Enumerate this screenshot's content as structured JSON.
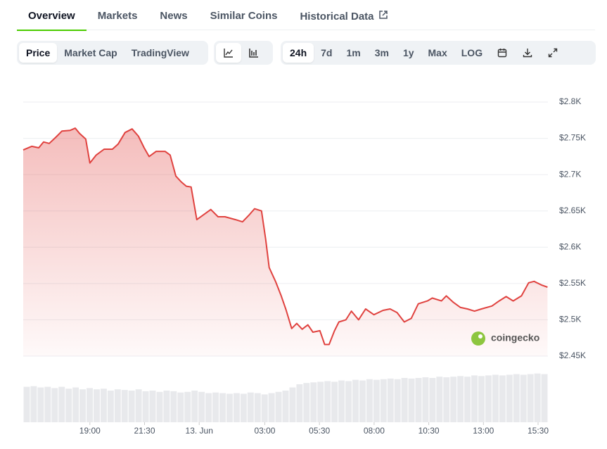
{
  "tabs": [
    "Overview",
    "Markets",
    "News",
    "Similar Coins",
    "Historical Data"
  ],
  "active_tab": 0,
  "chart_tabs": [
    "Price",
    "Market Cap",
    "TradingView"
  ],
  "active_chart_tab": 0,
  "ranges": [
    "24h",
    "7d",
    "1m",
    "3m",
    "1y",
    "Max",
    "LOG"
  ],
  "active_range": 0,
  "watermark": "coingecko",
  "chart_data": {
    "type": "line",
    "x": [
      15.95,
      16.34,
      16.66,
      16.88,
      17.14,
      17.46,
      17.72,
      18.1,
      18.33,
      18.52,
      18.81,
      19.0,
      19.29,
      19.65,
      20.03,
      20.29,
      20.61,
      20.93,
      21.22,
      21.48,
      21.71,
      22.03,
      22.44,
      22.67,
      22.93,
      23.18,
      23.41,
      23.63,
      23.89,
      24.21,
      24.53,
      24.86,
      25.18,
      25.66,
      25.98,
      26.3,
      26.53,
      26.85,
      27.04,
      27.2,
      27.49,
      27.75,
      27.97,
      28.23,
      28.46,
      28.71,
      28.97,
      29.2,
      29.52,
      29.74,
      29.94,
      30.19,
      30.39,
      30.71,
      30.96,
      31.29,
      31.61,
      31.99,
      32.41,
      32.73,
      33.05,
      33.38,
      33.7,
      34.02,
      34.44,
      34.66,
      35.08,
      35.3,
      35.63,
      35.95,
      36.27,
      36.59,
      36.91,
      37.39,
      37.72,
      38.04,
      38.36,
      38.74,
      39.07,
      39.32,
      39.65,
      39.93
    ],
    "series": [
      {
        "color": "#e0423f",
        "values": [
          2734,
          2739,
          2737,
          2745,
          2743,
          2752,
          2760,
          2761,
          2764,
          2757,
          2749,
          2716,
          2727,
          2735,
          2735,
          2742,
          2758,
          2763,
          2753,
          2737,
          2725,
          2732,
          2732,
          2727,
          2698,
          2690,
          2684,
          2683,
          2638,
          2645,
          2652,
          2642,
          2642,
          2638,
          2635,
          2645,
          2653,
          2650,
          2611,
          2572,
          2553,
          2533,
          2514,
          2488,
          2495,
          2487,
          2493,
          2483,
          2485,
          2466,
          2466,
          2485,
          2497,
          2500,
          2512,
          2500,
          2515,
          2507,
          2513,
          2515,
          2510,
          2497,
          2502,
          2522,
          2526,
          2530,
          2526,
          2533,
          2524,
          2517,
          2515,
          2512,
          2515,
          2519,
          2526,
          2532,
          2526,
          2533,
          2551,
          2553,
          2548,
          2545
        ]
      }
    ],
    "xlim": [
      15.95,
      39.95
    ],
    "xticks": [
      {
        "value": 19,
        "label": "19:00"
      },
      {
        "value": 21.5,
        "label": "21:30"
      },
      {
        "value": 24,
        "label": "13. Jun"
      },
      {
        "value": 27,
        "label": "03:00"
      },
      {
        "value": 29.5,
        "label": "05:30"
      },
      {
        "value": 32,
        "label": "08:00"
      },
      {
        "value": 34.5,
        "label": "10:30"
      },
      {
        "value": 37,
        "label": "13:00"
      },
      {
        "value": 39.5,
        "label": "15:30"
      }
    ],
    "ylim": [
      2450,
      2800
    ],
    "yticks": [
      {
        "value": 2450,
        "label": "$2.45K"
      },
      {
        "value": 2500,
        "label": "$2.5K"
      },
      {
        "value": 2550,
        "label": "$2.55K"
      },
      {
        "value": 2600,
        "label": "$2.6K"
      },
      {
        "value": 2650,
        "label": "$2.65K"
      },
      {
        "value": 2700,
        "label": "$2.7K"
      },
      {
        "value": 2750,
        "label": "$2.75K"
      },
      {
        "value": 2800,
        "label": "$2.8K"
      }
    ],
    "grid": true,
    "volume": {
      "color": "#e8e9ec",
      "ylim": [
        0,
        100
      ],
      "values": [
        56,
        57,
        55,
        56,
        54,
        56,
        53,
        55,
        52,
        54,
        52,
        53,
        50,
        52,
        51,
        50,
        52,
        49,
        50,
        48,
        50,
        49,
        47,
        48,
        50,
        48,
        46,
        47,
        46,
        45,
        46,
        45,
        47,
        46,
        44,
        46,
        48,
        50,
        55,
        60,
        62,
        63,
        64,
        65,
        64,
        66,
        65,
        67,
        66,
        68,
        67,
        68,
        69,
        68,
        70,
        69,
        70,
        71,
        70,
        72,
        71,
        72,
        73,
        72,
        74,
        73,
        74,
        75,
        74,
        75,
        76,
        75,
        76,
        77,
        76
      ]
    }
  }
}
